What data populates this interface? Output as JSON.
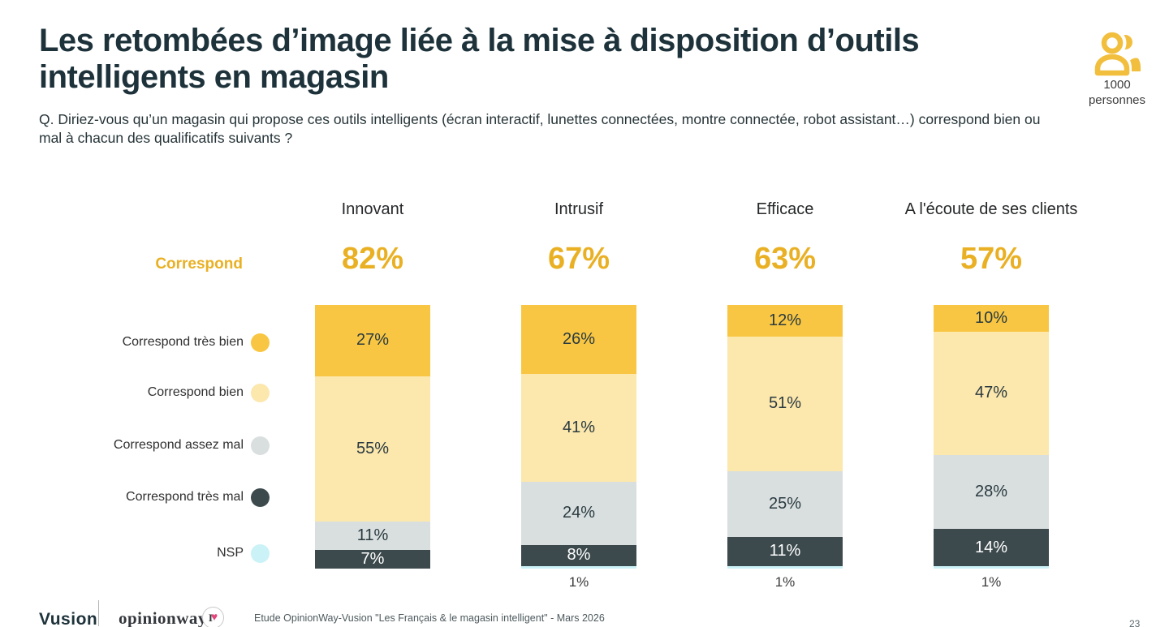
{
  "header": {
    "title_lines": [
      "Les retombées d’image liée à la mise à disposition d’outils",
      "intelligents en magasin"
    ],
    "question": "Q. Diriez-vous qu’un magasin qui propose ces outils intelligents (écran interactif, lunettes connectées, montre connectée, robot assistant…) correspond bien ou mal à chacun des qualificatifs suivants ?",
    "sample": {
      "icon": "people-icon",
      "count": "1000",
      "unit": "personnes"
    }
  },
  "chart_data": {
    "type": "bar",
    "stacked": true,
    "value_suffix": "%",
    "title": "Les retombées d’image liée à la mise à disposition d’outils intelligents en magasin",
    "categories": [
      "Innovant",
      "Intrusif",
      "Efficace",
      "A l'écoute de ses clients"
    ],
    "correspond_label": "Correspond",
    "correspond_totals": [
      82,
      67,
      63,
      57
    ],
    "series": [
      {
        "name": "Correspond très bien",
        "color": "#f8c642",
        "value_label_color": "#2a3a40",
        "values": [
          27,
          26,
          12,
          10
        ]
      },
      {
        "name": "Correspond bien",
        "color": "#fce7ad",
        "value_label_color": "#2a3a40",
        "values": [
          55,
          41,
          51,
          47
        ]
      },
      {
        "name": "Correspond assez mal",
        "color": "#d9dfdf",
        "value_label_color": "#2a3a40",
        "values": [
          11,
          24,
          25,
          28
        ]
      },
      {
        "name": "Correspond très mal",
        "color": "#3d4a4d",
        "value_label_color": "#ffffff",
        "values": [
          7,
          8,
          11,
          14
        ]
      },
      {
        "name": "NSP",
        "color": "#cbf2f7",
        "value_label_color": "#3b3b3b",
        "values": [
          0,
          1,
          1,
          1
        ]
      }
    ],
    "ylim": [
      0,
      100
    ],
    "legend_position": "left",
    "grid": false,
    "accent_text_color": "#e9b024"
  },
  "footer": {
    "brand_left": "Vusion",
    "brand_right": "opinionway",
    "badge": "I",
    "badge_heart": "♥",
    "source": "Etude OpinionWay-Vusion \"Les Français & le magasin intelligent\" - Mars 2026",
    "page_number": "23"
  }
}
